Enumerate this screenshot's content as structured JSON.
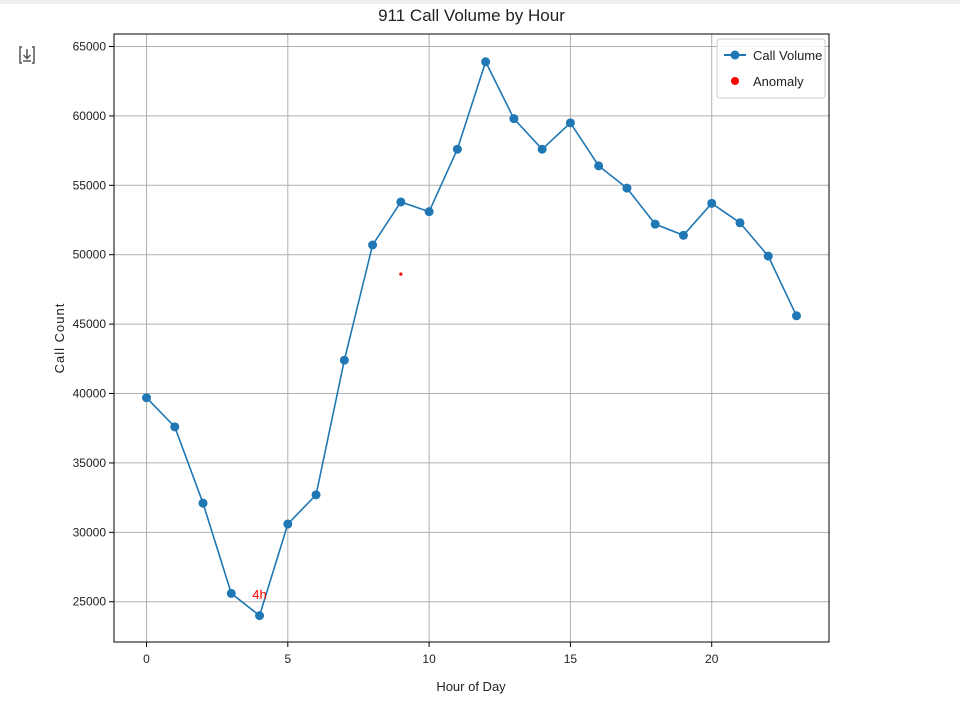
{
  "toolbar": {
    "output_icon": "download-arrow-icon"
  },
  "chart_data": {
    "type": "line",
    "title": "911 Call Volume by Hour",
    "xlabel": "Hour of Day",
    "ylabel": "Call Count",
    "xlim": [
      -1.15,
      24.15
    ],
    "ylim": [
      22100,
      65900
    ],
    "xticks": [
      0,
      5,
      10,
      15,
      20
    ],
    "yticks": [
      25000,
      30000,
      35000,
      40000,
      45000,
      50000,
      55000,
      60000,
      65000
    ],
    "grid": true,
    "legend_position": "top-right",
    "series": [
      {
        "name": "Call Volume",
        "color": "#1f77b4",
        "marker": "circle",
        "x": [
          0,
          1,
          2,
          3,
          4,
          5,
          6,
          7,
          8,
          9,
          10,
          11,
          12,
          13,
          14,
          15,
          16,
          17,
          18,
          19,
          20,
          21,
          22,
          23
        ],
        "y": [
          39700,
          37600,
          32100,
          25600,
          24000,
          30600,
          32700,
          42400,
          50700,
          53800,
          53100,
          57600,
          63900,
          59800,
          57600,
          59500,
          56400,
          54800,
          52200,
          51400,
          53700,
          52300,
          49900,
          45600
        ]
      },
      {
        "name": "Anomaly",
        "color": "#ff0000",
        "marker": "dot",
        "x": [
          9
        ],
        "y": [
          48600
        ]
      }
    ],
    "annotations": [
      {
        "text": "4h",
        "x": 4,
        "y": 25200,
        "color": "#ff0000"
      }
    ]
  }
}
